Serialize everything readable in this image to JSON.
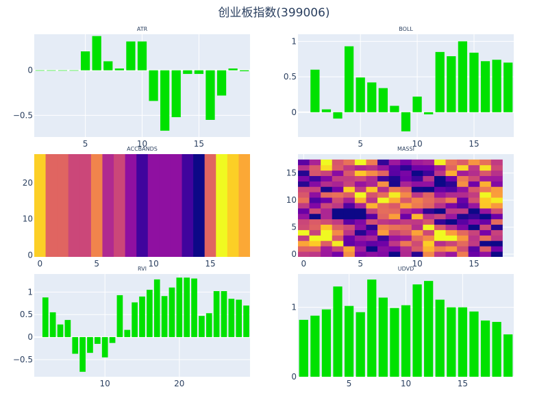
{
  "title": "创业板指数(399006)",
  "colors": {
    "bar": "#00e100",
    "plot_bg": "#e5ecf6",
    "grid": "#ffffff",
    "text": "#2a3f5f"
  },
  "colorscale": [
    "#0d0887",
    "#46039f",
    "#7201a8",
    "#9c179e",
    "#bd3786",
    "#d8576b",
    "#ed7953",
    "#fb9f3a",
    "#fdca26",
    "#f0f921"
  ],
  "chart_data": [
    {
      "type": "bar",
      "title": "ATR",
      "x": [
        1,
        2,
        3,
        4,
        5,
        6,
        7,
        8,
        9,
        10,
        11,
        12,
        13,
        14,
        15,
        16,
        17,
        18,
        19
      ],
      "values": [
        0,
        0,
        0,
        0,
        0.21,
        0.38,
        0.1,
        0.02,
        0.32,
        0.32,
        -0.34,
        -0.67,
        -0.52,
        -0.04,
        -0.04,
        -0.55,
        -0.28,
        0.02,
        -0.01
      ],
      "xlim": [
        0.5,
        19.5
      ],
      "ylim": [
        -0.74,
        0.4
      ],
      "xticks": [
        5,
        10,
        15
      ],
      "yticks": [
        -0.5,
        0
      ]
    },
    {
      "type": "bar",
      "title": "BOLL",
      "x": [
        1,
        2,
        3,
        4,
        5,
        6,
        7,
        8,
        9,
        10,
        11,
        12,
        13,
        14,
        15,
        16,
        17,
        18,
        19
      ],
      "values": [
        0.6,
        0.04,
        -0.09,
        0.93,
        0.49,
        0.42,
        0.34,
        0.09,
        -0.27,
        0.22,
        -0.03,
        0.85,
        0.79,
        1.0,
        0.84,
        0.72,
        0.74,
        0.7
      ],
      "x_values": [
        1,
        2,
        3,
        4,
        5,
        6,
        7,
        8,
        9,
        10,
        11,
        12,
        13,
        14,
        15,
        16,
        17,
        18
      ],
      "xlim": [
        -0.5,
        18.5
      ],
      "ylim": [
        -0.35,
        1.1
      ],
      "xticks": [
        5,
        10,
        15
      ],
      "yticks": [
        0,
        0.5,
        1
      ]
    },
    {
      "type": "heatmap",
      "title": "ACCBANDS",
      "xlim": [
        -0.5,
        18.5
      ],
      "ylim": [
        -0.5,
        28
      ],
      "xticks": [
        0,
        5,
        10,
        15
      ],
      "yticks": [
        0,
        10,
        20
      ],
      "column_values": [
        0.9,
        0.6,
        0.6,
        0.5,
        0.5,
        0.7,
        0.4,
        0.5,
        0.3,
        0.1,
        0.3,
        0.3,
        0.3,
        0.1,
        0.0,
        0.6,
        1.0,
        0.9,
        0.8
      ]
    },
    {
      "type": "heatmap",
      "title": "MASSI",
      "xlim": [
        -0.5,
        18.5
      ],
      "ylim": [
        -0.5,
        18.5
      ],
      "xticks": [
        0,
        5,
        10,
        15
      ],
      "yticks": [
        0,
        5,
        10,
        15
      ],
      "rows": 18,
      "cols": 18,
      "seed": 17
    },
    {
      "type": "bar",
      "title": "RVI",
      "x": [
        2,
        3,
        4,
        5,
        6,
        7,
        8,
        9,
        10,
        11,
        12,
        13,
        14,
        15,
        16,
        17,
        18,
        19,
        20,
        21,
        22,
        23,
        24,
        25,
        26,
        27,
        28,
        29
      ],
      "values": [
        0.88,
        0.55,
        0.28,
        0.38,
        -0.37,
        -0.77,
        -0.35,
        -0.15,
        -0.45,
        -0.13,
        0.93,
        0.16,
        0.77,
        0.9,
        1.05,
        1.28,
        0.91,
        1.1,
        1.32,
        1.32,
        1.3,
        0.47,
        0.53,
        1.02,
        1.02,
        0.85,
        0.83,
        0.7
      ],
      "xlim": [
        0.5,
        29.5
      ],
      "ylim": [
        -0.88,
        1.4
      ],
      "xticks": [
        10,
        20
      ],
      "yticks": [
        -0.5,
        0,
        0.5,
        1
      ]
    },
    {
      "type": "bar",
      "title": "UDVD",
      "x": [
        1,
        2,
        3,
        4,
        5,
        6,
        7,
        8,
        9,
        10,
        11,
        12,
        13,
        14,
        15,
        16,
        17,
        18,
        19
      ],
      "values": [
        0.82,
        0.88,
        0.97,
        1.3,
        1.02,
        0.93,
        1.4,
        1.14,
        0.99,
        1.03,
        1.33,
        1.38,
        1.11,
        1.0,
        1.0,
        0.94,
        0.81,
        0.79,
        0.61
      ],
      "xlim": [
        0.5,
        19.5
      ],
      "ylim": [
        0,
        1.48
      ],
      "xticks": [
        5,
        10,
        15
      ],
      "yticks": [
        0,
        1
      ]
    }
  ]
}
